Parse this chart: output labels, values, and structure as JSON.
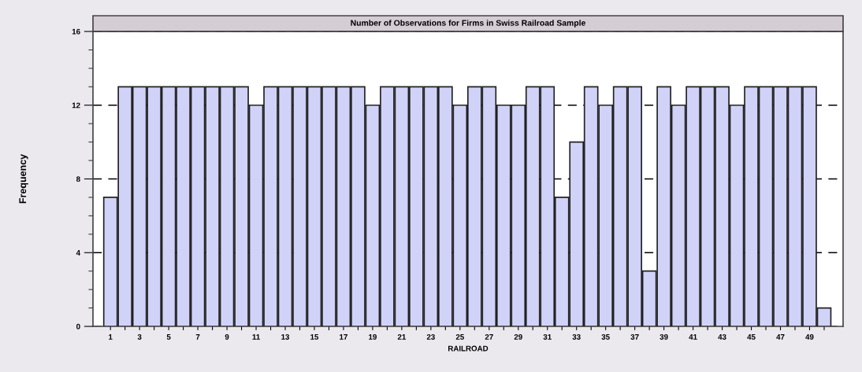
{
  "chart_data": {
    "type": "bar",
    "title": "Number of Observations for Firms in Swiss Railroad Sample",
    "xlabel": "RAILROAD",
    "ylabel": "Frequency",
    "categories": [
      "1",
      null,
      "3",
      null,
      "5",
      null,
      "7",
      null,
      "9",
      null,
      "11",
      null,
      "13",
      null,
      "15",
      null,
      "17",
      null,
      "19",
      null,
      "21",
      null,
      "23",
      null,
      "25",
      null,
      "27",
      null,
      "29",
      null,
      "31",
      null,
      "33",
      null,
      "35",
      null,
      "37",
      null,
      "39",
      null,
      "41",
      null,
      "43",
      null,
      "45",
      null,
      "47",
      null,
      "49",
      null
    ],
    "values": [
      7,
      13,
      13,
      13,
      13,
      13,
      13,
      13,
      13,
      13,
      12,
      13,
      13,
      13,
      13,
      13,
      13,
      13,
      12,
      13,
      13,
      13,
      13,
      13,
      12,
      13,
      13,
      12,
      12,
      13,
      13,
      7,
      10,
      13,
      12,
      13,
      13,
      3,
      13,
      12,
      13,
      13,
      13,
      12,
      13,
      13,
      13,
      13,
      13,
      1
    ],
    "color": "#d0d2f8",
    "ylim": [
      0,
      16
    ],
    "yticks": [
      0,
      4,
      8,
      12,
      16
    ],
    "grid": "y",
    "line_style": "dashed"
  }
}
